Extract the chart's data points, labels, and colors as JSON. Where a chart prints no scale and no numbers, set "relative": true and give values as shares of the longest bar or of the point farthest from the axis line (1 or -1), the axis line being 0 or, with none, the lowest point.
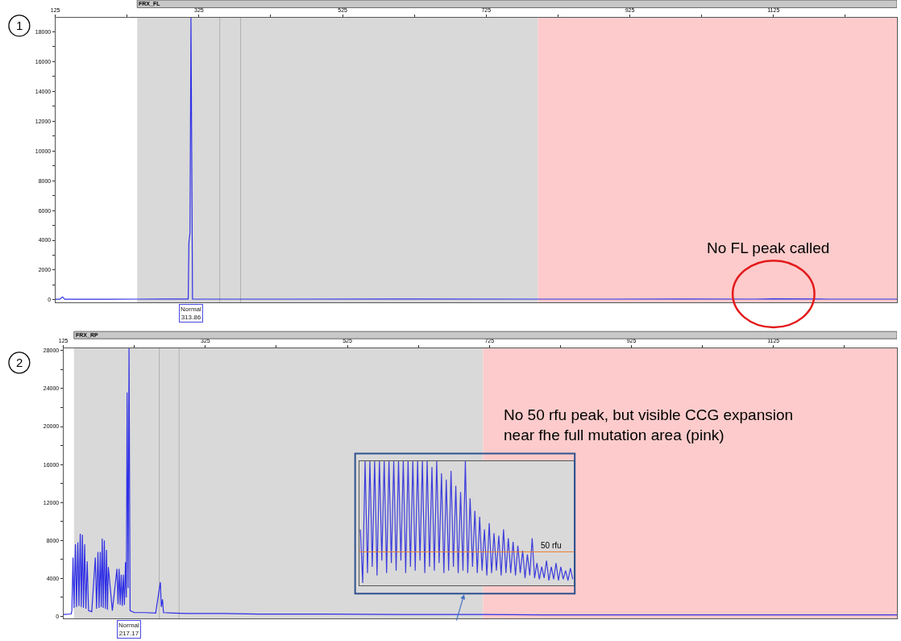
{
  "chart_data": [
    {
      "type": "line",
      "title": "FRX_FL",
      "color": "#2f2fe6",
      "grid": false,
      "marker": "none",
      "x": [
        125,
        131,
        135,
        138,
        145,
        200,
        239,
        280,
        310,
        311,
        312.5,
        313.86,
        315,
        316,
        320,
        354,
        383,
        450,
        600,
        797,
        900,
        1000,
        1100,
        1124,
        1200,
        1297
      ],
      "values": [
        40,
        40,
        200,
        40,
        50,
        40,
        50,
        60,
        60,
        3850,
        4500,
        18940,
        9300,
        60,
        50,
        50,
        50,
        50,
        60,
        50,
        50,
        60,
        50,
        70,
        50,
        50
      ],
      "xlim": [
        125,
        1297
      ],
      "xticks": [
        125,
        {
          "value": 225,
          "label": null
        },
        325,
        {
          "value": 425,
          "label": null
        },
        525,
        {
          "value": 625,
          "label": null
        },
        725,
        {
          "value": 825,
          "label": null
        },
        925,
        {
          "value": 1025,
          "label": null
        },
        1125,
        {
          "value": 1225,
          "label": null
        }
      ],
      "ylim": [
        -170,
        18940
      ],
      "yticks": [
        0,
        {
          "value": 1000,
          "label": null
        },
        2000,
        {
          "value": 3000,
          "label": null
        },
        4000,
        {
          "value": 5000,
          "label": null
        },
        6000,
        {
          "value": 7000,
          "label": null
        },
        8000,
        {
          "value": 9000,
          "label": null
        },
        10000,
        {
          "value": 11000,
          "label": null
        },
        12000,
        {
          "value": 13000,
          "label": null
        },
        14000,
        {
          "value": 15000,
          "label": null
        },
        16000,
        {
          "value": 17000,
          "label": null
        },
        18000
      ],
      "bands": [
        {
          "axis": "x",
          "from": 239,
          "to": 797,
          "color": "#d9d9d9"
        },
        {
          "axis": "x",
          "from": 797,
          "to": 1297,
          "color": "#fdcbcb"
        }
      ],
      "ref_lines": [
        {
          "axis": "x",
          "value": 354,
          "color": "#b0b0b0"
        },
        {
          "axis": "x",
          "value": 383,
          "color": "#b0b0b0"
        }
      ],
      "annotations": [
        "1",
        {
          "text": "Normal\n313.86",
          "x": 313.86,
          "y": 0
        },
        "No FL peak called"
      ]
    },
    {
      "type": "line",
      "title": "FRX_RP",
      "color": "#2f2fe6",
      "grid": false,
      "marker": "none",
      "x": [
        125,
        136,
        137,
        138.6,
        140,
        142,
        143.5,
        145.4,
        147,
        148.8,
        150.3,
        151.8,
        153.4,
        155,
        156.8,
        158.6,
        160.5,
        165,
        170,
        171.8,
        173.7,
        175.3,
        177,
        178.4,
        179.7,
        181.2,
        182.7,
        184.3,
        185.8,
        187.1,
        188.4,
        194,
        200.5,
        202,
        203.5,
        205,
        206.5,
        208,
        209.5,
        211,
        212.5,
        213.7,
        214.8,
        216.2,
        217.5,
        219,
        225,
        240,
        255,
        261.6,
        263,
        264.6,
        266,
        280,
        300,
        350,
        400,
        500,
        600,
        716,
        800,
        900,
        1000,
        1100,
        1200,
        1299
      ],
      "values": [
        200,
        250,
        600,
        6200,
        900,
        7600,
        1000,
        7800,
        1100,
        8700,
        1000,
        8600,
        900,
        7600,
        800,
        5800,
        600,
        500,
        6200,
        800,
        6800,
        900,
        6800,
        1000,
        8200,
        900,
        8000,
        800,
        7000,
        700,
        5200,
        600,
        5000,
        1300,
        5000,
        1200,
        4400,
        1100,
        4400,
        1200,
        5700,
        2000,
        23600,
        3000,
        28250,
        600,
        400,
        400,
        350,
        3600,
        1000,
        1800,
        400,
        350,
        300,
        300,
        250,
        250,
        200,
        200,
        150,
        150,
        150,
        150,
        150,
        150
      ],
      "xlim": [
        125,
        1299
      ],
      "xticks": [
        125,
        {
          "value": 225,
          "label": null
        },
        325,
        {
          "value": 425,
          "label": null
        },
        525,
        {
          "value": 625,
          "label": null
        },
        725,
        {
          "value": 825,
          "label": null
        },
        925,
        {
          "value": 1025,
          "label": null
        },
        1125,
        {
          "value": 1225,
          "label": null
        }
      ],
      "ylim": [
        -220,
        28250
      ],
      "yticks": [
        0,
        {
          "value": 2000,
          "label": null
        },
        4000,
        {
          "value": 6000,
          "label": null
        },
        8000,
        {
          "value": 10000,
          "label": null
        },
        12000,
        {
          "value": 14000,
          "label": null
        },
        16000,
        {
          "value": 18000,
          "label": null
        },
        20000,
        {
          "value": 22000,
          "label": null
        },
        24000,
        {
          "value": 26000,
          "label": null
        },
        28000
      ],
      "bands": [
        {
          "axis": "x",
          "from": 140,
          "to": 716,
          "color": "#d9d9d9"
        },
        {
          "axis": "x",
          "from": 716,
          "to": 1299,
          "color": "#fdcbcb"
        }
      ],
      "ref_lines": [
        {
          "axis": "x",
          "value": 260,
          "color": "#b0b0b0"
        },
        {
          "axis": "x",
          "value": 288,
          "color": "#b0b0b0"
        }
      ],
      "annotations": [
        "2",
        {
          "text": "Normal\n217.17",
          "x": 217.17,
          "y": 0
        },
        "No 50 rfu peak, but visible CCG expansion\nnear fhe full mutation area (pink)"
      ]
    },
    {
      "type": "line",
      "relative": true,
      "color": "#3c3cdc",
      "tick_labels": false,
      "grid": false,
      "marker": "none",
      "categories": [
        null,
        null,
        null,
        null,
        null,
        null,
        null,
        null,
        null,
        null,
        null,
        null,
        null,
        null,
        null,
        null,
        null,
        null,
        null,
        null,
        null,
        null,
        null,
        null,
        null,
        null,
        null,
        null,
        null,
        null,
        null,
        null,
        null,
        null,
        null,
        null,
        null,
        null,
        null,
        null,
        null,
        null,
        null,
        null,
        null,
        null,
        null,
        null,
        null,
        null,
        null,
        null,
        null,
        null,
        null,
        null,
        null,
        null,
        null,
        null,
        null,
        null,
        null,
        null,
        null,
        null,
        null,
        null,
        null,
        null,
        null,
        null,
        null,
        null,
        null,
        null,
        null,
        null,
        null,
        null,
        null,
        null,
        null,
        null,
        null,
        null,
        null,
        null,
        null,
        null
      ],
      "values": [
        0.45,
        0.02,
        1,
        0.1,
        1,
        0.15,
        1,
        0.08,
        1,
        0.2,
        1,
        0.1,
        1,
        0.18,
        1,
        0.12,
        1,
        0.2,
        1,
        0.1,
        1,
        0.15,
        1,
        0.12,
        1,
        0.2,
        1,
        0.1,
        1,
        0.15,
        0.95,
        0.12,
        1,
        0.18,
        0.9,
        0.1,
        0.85,
        0.12,
        0.92,
        0.15,
        0.8,
        0.1,
        0.75,
        0.12,
        1,
        0.1,
        0.7,
        0.15,
        0.6,
        0.1,
        0.55,
        0.12,
        0.45,
        0.08,
        0.5,
        0.1,
        0.42,
        0.12,
        0.4,
        0.08,
        0.45,
        0.1,
        0.38,
        0.1,
        0.35,
        0.08,
        0.32,
        0.1,
        0.28,
        0.06,
        0.25,
        0.08,
        0.38,
        0.06,
        0.18,
        0.05,
        0.15,
        0.06,
        0.2,
        0.04,
        0.15,
        0.05,
        0.18,
        0.04,
        0.15,
        0.05,
        0.12,
        0.04,
        0.14,
        0.05
      ],
      "ref_lines": [
        {
          "axis": "y",
          "value": 0.27,
          "label": "50 rfu",
          "color": "#ed7d31"
        }
      ]
    }
  ]
}
